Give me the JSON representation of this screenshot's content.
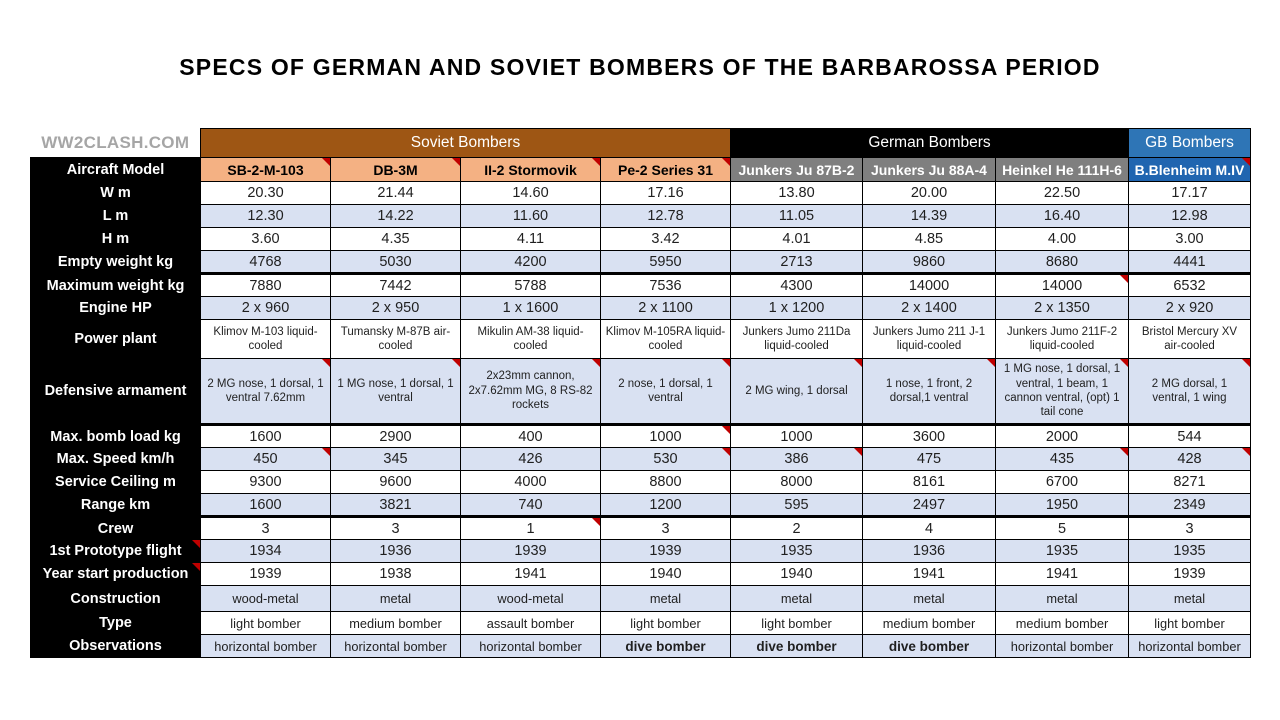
{
  "title": "SPECS OF GERMAN AND SOVIET BOMBERS OF THE BARBAROSSA PERIOD",
  "watermark": "WW2CLASH.COM",
  "colors": {
    "soviet_group_bg": "#9e5614",
    "german_group_bg": "#000000",
    "gb_group_bg": "#2e75b6",
    "soviet_model_bg": "#f4b183",
    "german_model_bg": "#7f7f7f",
    "gb_model_bg": "#2065b0",
    "row_stripe_bg": "#d9e1f2",
    "label_bg": "#000000",
    "comment_triangle": "#c00000"
  },
  "table": {
    "groups": [
      {
        "label": "Soviet Bombers",
        "span": 4,
        "bg": "#9e5614",
        "fg": "#ffffff"
      },
      {
        "label": "German Bombers",
        "span": 3,
        "bg": "#000000",
        "fg": "#ffffff"
      },
      {
        "label": "GB Bombers",
        "span": 1,
        "bg": "#2e75b6",
        "fg": "#ffffff"
      }
    ],
    "model_row_label": "Aircraft Model",
    "models": [
      {
        "name": "SB-2-M-103",
        "bg": "#f4b183",
        "fg": "#000000",
        "note": true
      },
      {
        "name": "DB-3M",
        "bg": "#f4b183",
        "fg": "#000000",
        "note": true
      },
      {
        "name": "II-2 Stormovik",
        "bg": "#f4b183",
        "fg": "#000000",
        "note": true
      },
      {
        "name": "Pe-2 Series 31",
        "bg": "#f4b183",
        "fg": "#000000",
        "note": true
      },
      {
        "name": "Junkers Ju 87B-2",
        "bg": "#7f7f7f",
        "fg": "#ffffff",
        "note": false
      },
      {
        "name": "Junkers Ju 88A-4",
        "bg": "#7f7f7f",
        "fg": "#ffffff",
        "note": false
      },
      {
        "name": "Heinkel He 111H-6",
        "bg": "#7f7f7f",
        "fg": "#ffffff",
        "note": false
      },
      {
        "name": "B.Blenheim M.IV",
        "bg": "#2065b0",
        "fg": "#ffffff",
        "note": true
      }
    ],
    "rows": [
      {
        "label": "W m",
        "values": [
          "20.30",
          "21.44",
          "14.60",
          "17.16",
          "13.80",
          "20.00",
          "22.50",
          "17.17"
        ]
      },
      {
        "label": "L m",
        "values": [
          "12.30",
          "14.22",
          "11.60",
          "12.78",
          "11.05",
          "14.39",
          "16.40",
          "12.98"
        ]
      },
      {
        "label": "H m",
        "values": [
          "3.60",
          "4.35",
          "4.11",
          "3.42",
          "4.01",
          "4.85",
          "4.00",
          "3.00"
        ]
      },
      {
        "label": "Empty weight kg",
        "values": [
          "4768",
          "5030",
          "4200",
          "5950",
          "2713",
          "9860",
          "8680",
          "4441"
        ]
      },
      {
        "label": "Maximum weight kg",
        "thick": true,
        "notes": [
          6
        ],
        "values": [
          "7880",
          "7442",
          "5788",
          "7536",
          "4300",
          "14000",
          "14000",
          "6532"
        ]
      },
      {
        "label": "Engine HP",
        "values": [
          "2 x 960",
          "2 x 950",
          "1 x 1600",
          "2 x 1100",
          "1 x 1200",
          "2 x 1400",
          "2 x 1350",
          "2 x 920"
        ]
      },
      {
        "label": "Power plant",
        "kind": "t1",
        "size": "sm",
        "values": [
          "Klimov M-103 liquid-cooled",
          "Tumansky M-87B air-cooled",
          "Mikulin AM-38 liquid-cooled",
          "Klimov M-105RA liquid-cooled",
          "Junkers Jumo 211Da liquid-cooled",
          "Junkers Jumo 211 J-1 liquid-cooled",
          "Junkers Jumo 211F-2 liquid-cooled",
          "Bristol Mercury XV air-cooled"
        ]
      },
      {
        "label": "Defensive armament",
        "kind": "t2",
        "size": "sm",
        "notes": [
          0,
          1,
          2,
          3,
          4,
          5,
          6,
          7
        ],
        "values": [
          "2 MG nose, 1 dorsal, 1 ventral 7.62mm",
          "1 MG nose, 1 dorsal, 1 ventral",
          "2x23mm cannon, 2x7.62mm MG, 8 RS-82 rockets",
          "2 nose, 1 dorsal, 1 ventral",
          "2 MG wing, 1 dorsal",
          "1 nose, 1 front, 2 dorsal,1 ventral",
          "1 MG nose, 1 dorsal, 1 ventral, 1 beam, 1 cannon ventral, (opt) 1 tail cone",
          "2 MG dorsal, 1 ventral, 1 wing"
        ]
      },
      {
        "label": "Max. bomb load kg",
        "thick": true,
        "notes": [
          3
        ],
        "values": [
          "1600",
          "2900",
          "400",
          "1000",
          "1000",
          "3600",
          "2000",
          "544"
        ]
      },
      {
        "label": "Max. Speed km/h",
        "notes": [
          0,
          3,
          4,
          6,
          7
        ],
        "values": [
          "450",
          "345",
          "426",
          "530",
          "386",
          "475",
          "435",
          "428"
        ]
      },
      {
        "label": "Service Ceiling m",
        "values": [
          "9300",
          "9600",
          "4000",
          "8800",
          "8000",
          "8161",
          "6700",
          "8271"
        ]
      },
      {
        "label": "Range km",
        "values": [
          "1600",
          "3821",
          "740",
          "1200",
          "595",
          "2497",
          "1950",
          "2349"
        ]
      },
      {
        "label": "Crew",
        "thick": true,
        "notes": [
          2
        ],
        "values": [
          "3",
          "3",
          "1",
          "3",
          "2",
          "4",
          "5",
          "3"
        ]
      },
      {
        "label": "1st Prototype flight",
        "label_note": true,
        "values": [
          "1934",
          "1936",
          "1939",
          "1939",
          "1935",
          "1936",
          "1935",
          "1935"
        ]
      },
      {
        "label": "Year start production",
        "label_note": true,
        "values": [
          "1939",
          "1938",
          "1941",
          "1940",
          "1940",
          "1941",
          "1941",
          "1939"
        ]
      },
      {
        "label": "Construction",
        "kind": "c",
        "size": "sm2",
        "values": [
          "wood-metal",
          "metal",
          "wood-metal",
          "metal",
          "metal",
          "metal",
          "metal",
          "metal"
        ]
      },
      {
        "label": "Type",
        "size": "sm2",
        "values": [
          "light bomber",
          "medium bomber",
          "assault bomber",
          "light bomber",
          "light bomber",
          "medium bomber",
          "medium bomber",
          "light bomber"
        ]
      },
      {
        "label": "Observations",
        "size": "sm2",
        "bold": [
          3,
          4,
          5
        ],
        "values": [
          "horizontal bomber",
          "horizontal bomber",
          "horizontal bomber",
          "dive bomber",
          "dive bomber",
          "dive bomber",
          "horizontal bomber",
          "horizontal bomber"
        ]
      }
    ]
  }
}
